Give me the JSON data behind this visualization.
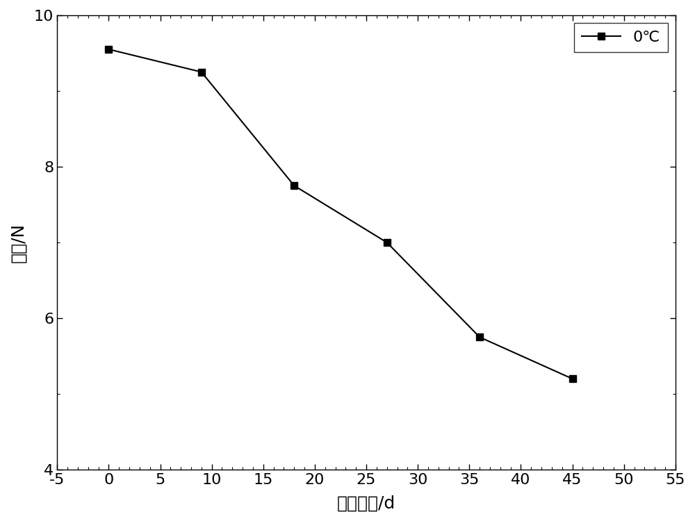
{
  "x": [
    0,
    9,
    18,
    27,
    36,
    45
  ],
  "y": [
    9.55,
    9.25,
    7.75,
    7.0,
    5.75,
    5.2
  ],
  "xlim": [
    -5,
    55
  ],
  "ylim": [
    4,
    10
  ],
  "xticks_major": [
    -5,
    0,
    5,
    10,
    15,
    20,
    25,
    30,
    35,
    40,
    45,
    50,
    55
  ],
  "yticks_major": [
    4,
    6,
    8,
    10
  ],
  "xlabel": "储藏时间/d",
  "ylabel": "硬度/N",
  "legend_label": "0℃",
  "line_color": "#000000",
  "marker": "s",
  "marker_size": 7,
  "marker_color": "#000000",
  "linewidth": 1.5,
  "background_color": "#ffffff",
  "legend_loc": "upper right"
}
